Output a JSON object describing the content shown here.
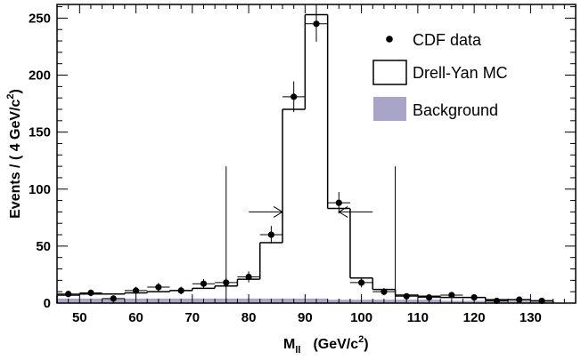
{
  "chart_data": {
    "type": "histogram",
    "xlabel": {
      "main": "M",
      "sub": "ll",
      "unit_pre": "(GeV/c",
      "unit_sup": "2",
      "unit_post": ")"
    },
    "ylabel": {
      "pre": "Events / ( 4 GeV/c",
      "sup": "2",
      "post": ")"
    },
    "xlim": [
      46,
      138
    ],
    "ylim": [
      0,
      262
    ],
    "xticks": [
      50,
      60,
      70,
      80,
      90,
      100,
      110,
      120,
      130
    ],
    "yticks": [
      0,
      50,
      100,
      150,
      200,
      250
    ],
    "bin_edges": [
      46,
      50,
      54,
      58,
      62,
      66,
      70,
      74,
      78,
      82,
      86,
      90,
      94,
      98,
      102,
      106,
      110,
      114,
      118,
      122,
      126,
      130,
      134
    ],
    "series": [
      {
        "name": "CDF data",
        "style": "points",
        "color": "#000000",
        "x": [
          48,
          52,
          56,
          60,
          64,
          68,
          72,
          76,
          80,
          84,
          88,
          92,
          96,
          100,
          104,
          108,
          112,
          116,
          120,
          124,
          128,
          132
        ],
        "y": [
          8,
          9,
          4,
          11,
          14,
          11,
          17,
          18,
          23,
          60,
          181,
          245,
          88,
          18,
          10,
          6,
          5,
          7,
          5,
          2,
          3,
          2
        ],
        "yerr": [
          2.8,
          3,
          2,
          3.3,
          3.7,
          3.3,
          4.1,
          4.2,
          4.8,
          7.7,
          13.5,
          15.7,
          9.4,
          4.2,
          3.2,
          2.4,
          2.2,
          2.6,
          2.2,
          1.4,
          1.7,
          1.4
        ]
      },
      {
        "name": "Drell-Yan MC",
        "style": "step",
        "color": "#000000",
        "values": [
          7,
          8,
          8,
          9,
          10,
          11,
          13,
          15,
          21,
          53,
          170,
          253,
          83,
          22,
          12,
          7,
          6,
          5,
          5,
          3,
          3,
          2
        ]
      },
      {
        "name": "Background",
        "style": "filled",
        "color": "#a9a5c8",
        "values": [
          4,
          4,
          4,
          4,
          4,
          4,
          4,
          4,
          4,
          4,
          4,
          4,
          3,
          3,
          3,
          3,
          3,
          2,
          2,
          2,
          2,
          2
        ]
      }
    ],
    "cut_lines": [
      {
        "x": 76,
        "y_top": 120,
        "arrow_from": 80,
        "arrow_to": 86,
        "arrow_y": 80
      },
      {
        "x": 106,
        "y_top": 120,
        "arrow_from": 102,
        "arrow_to": 96,
        "arrow_y": 80
      }
    ],
    "legend_position": "top-right"
  }
}
